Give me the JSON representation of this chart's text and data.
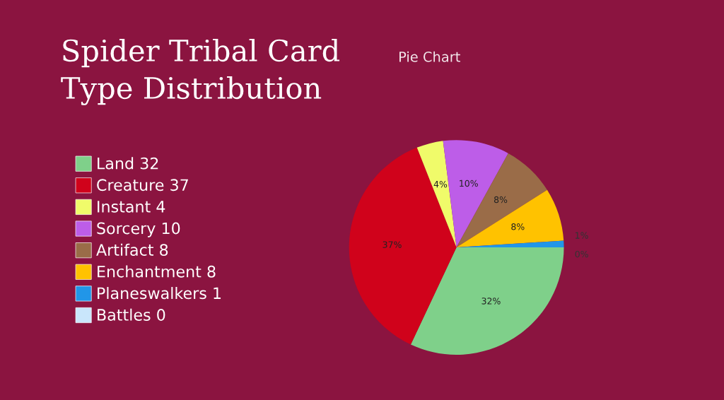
{
  "chart_data": {
    "type": "pie",
    "title": "Spider Tribal Card Type Distribution",
    "subtitle": "Pie Chart",
    "categories": [
      "Land 32",
      "Creature 37",
      "Instant 4",
      "Sorcery 10",
      "Artifact 8",
      "Enchantment 8",
      "Planeswalkers 1",
      "Battles 0"
    ],
    "values": [
      32,
      37,
      4,
      10,
      8,
      8,
      1,
      0
    ],
    "colors": [
      "#7fd08a",
      "#d0021b",
      "#f0fb6a",
      "#bd5de8",
      "#9a6c48",
      "#ffc200",
      "#2196e8",
      "#c9e6fb"
    ],
    "value_labels": [
      "32%",
      "37%",
      "4%",
      "10%",
      "8%",
      "8%",
      "1%",
      "0%"
    ],
    "legend": "left"
  }
}
